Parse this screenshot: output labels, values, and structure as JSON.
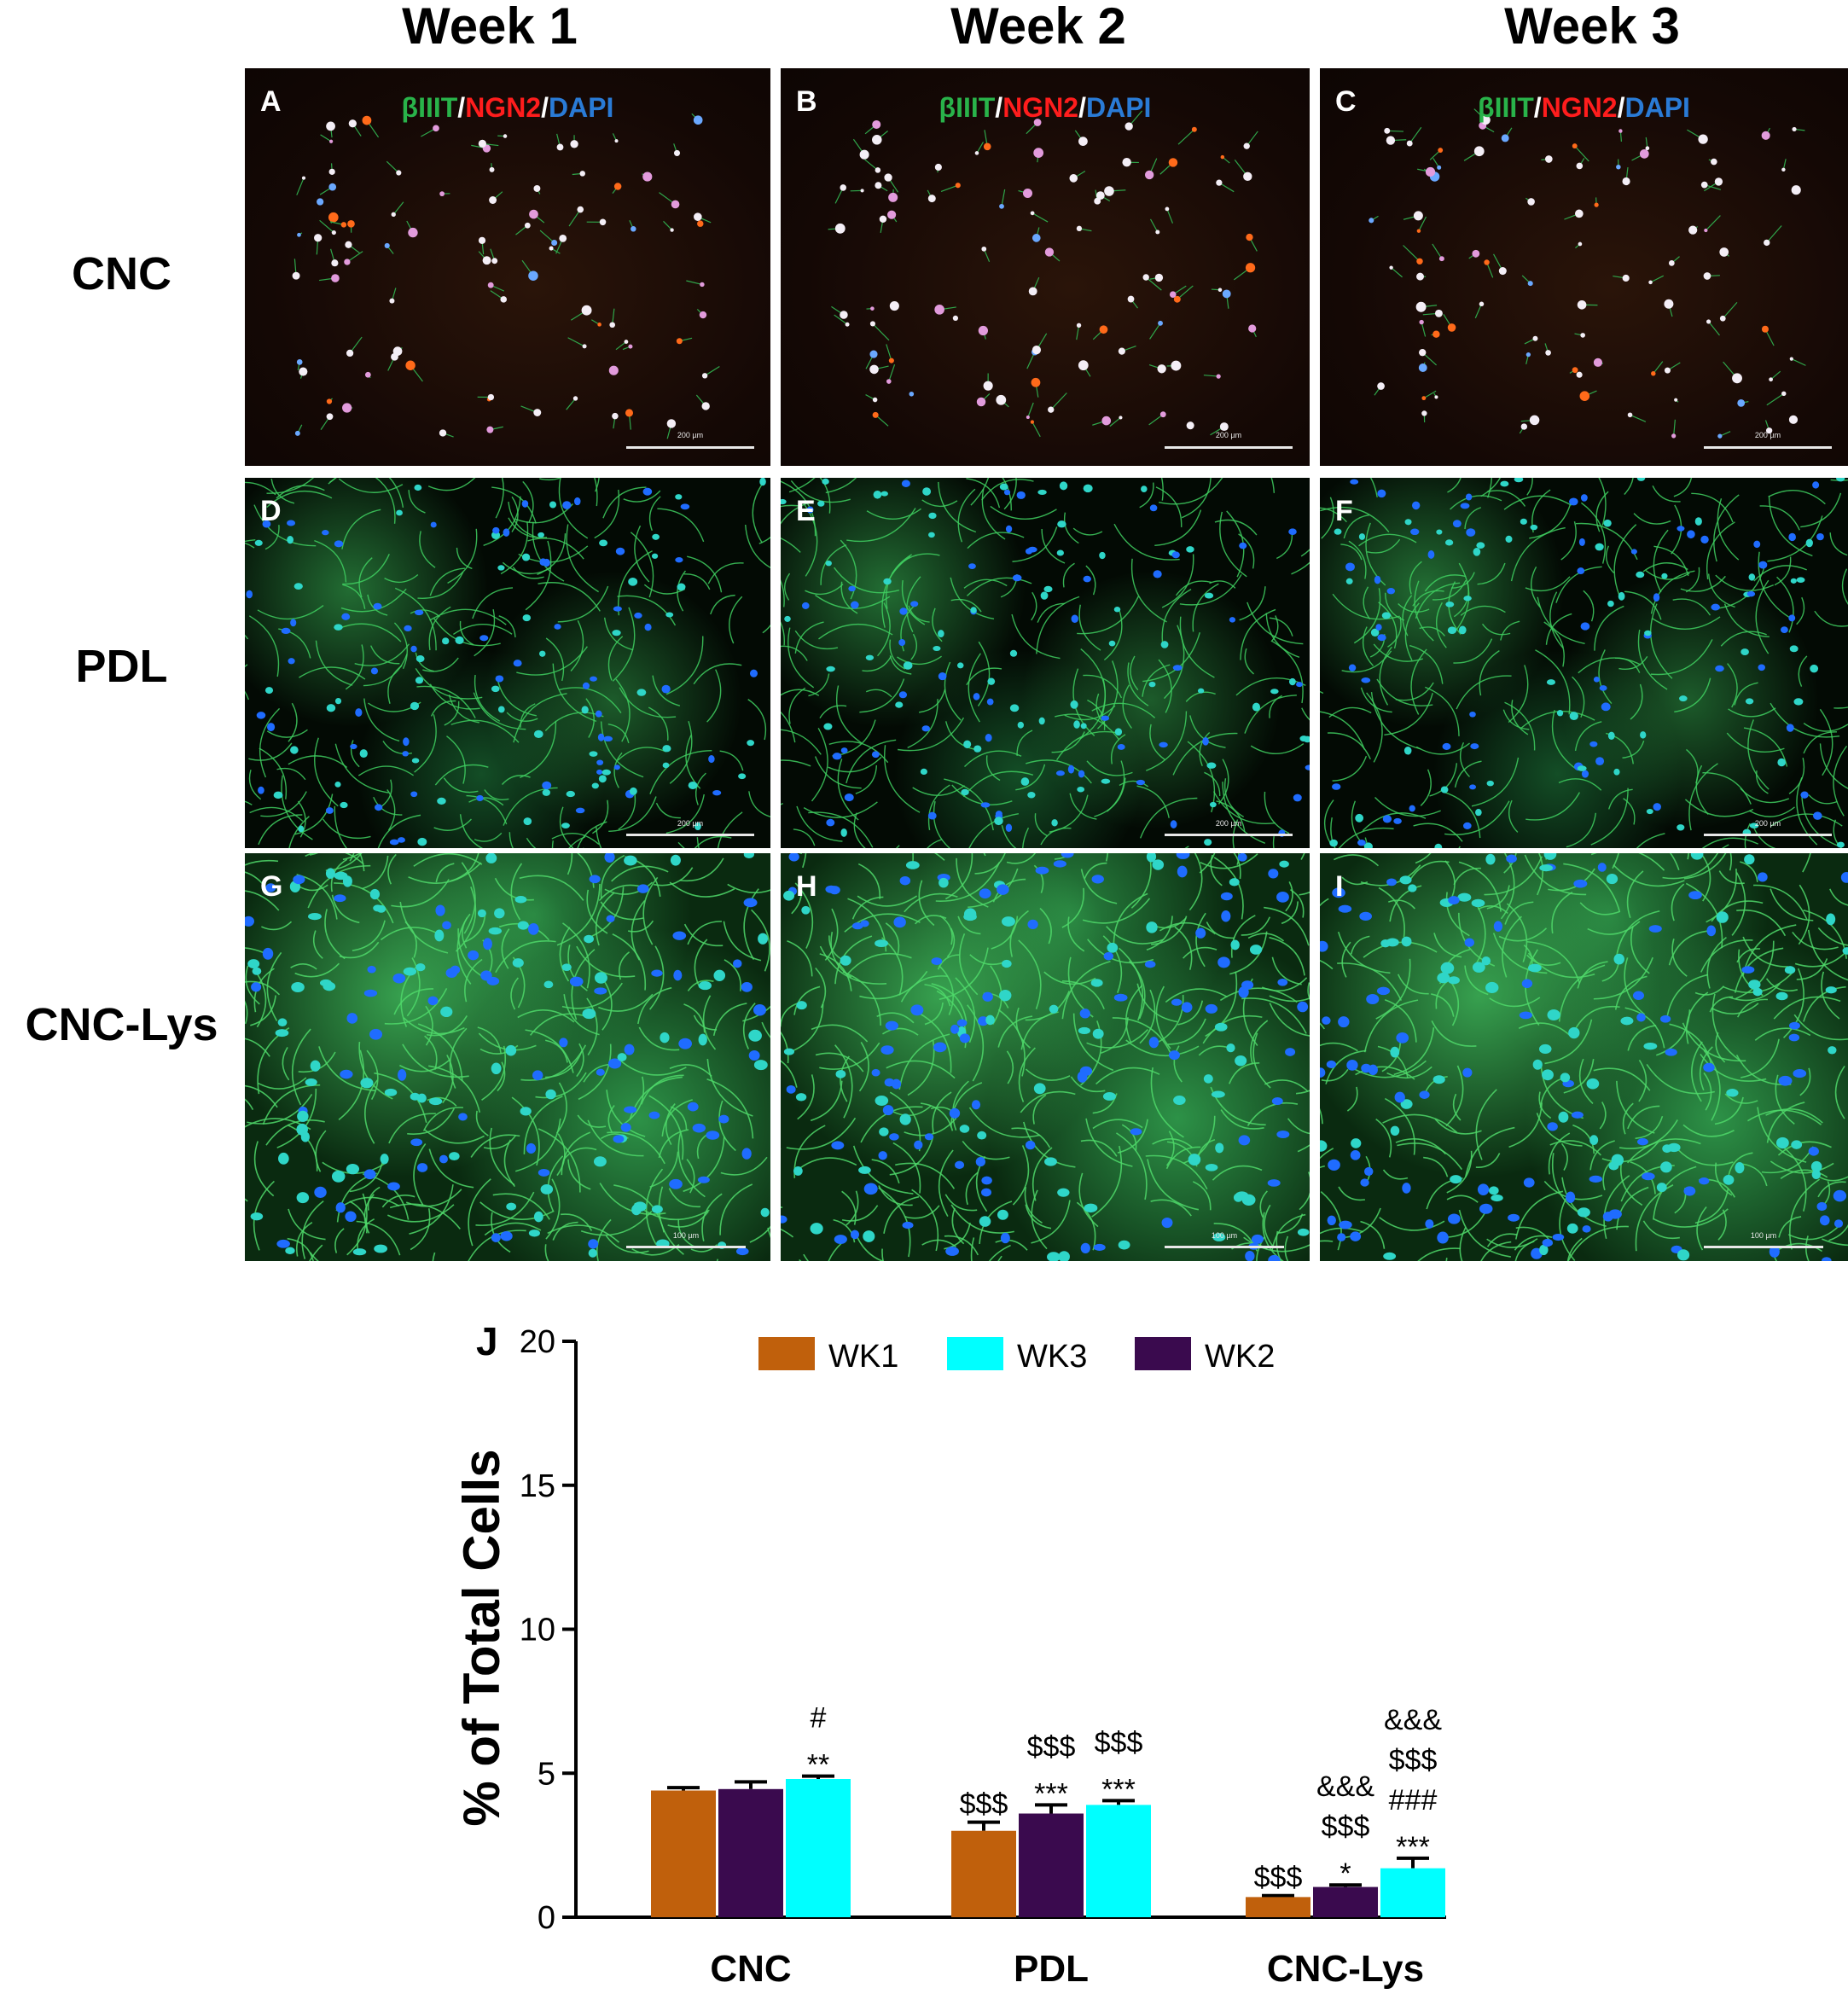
{
  "columns": [
    "Week 1",
    "Week 2",
    "Week 3"
  ],
  "rows": [
    "CNC",
    "PDL",
    "CNC-Lys"
  ],
  "panel_letters": [
    "A",
    "B",
    "C",
    "D",
    "E",
    "F",
    "G",
    "H",
    "I"
  ],
  "stain_label": {
    "marker1": "βIIIT",
    "sep1": "/",
    "marker2": "NGN2",
    "sep2": "/",
    "marker3": "DAPI"
  },
  "scale_labels": {
    "cnc": "200 µm",
    "pdl": "200 µm",
    "lys": "100 µm"
  },
  "colors": {
    "wk1": "#c0600c",
    "wk2": "#3a0a4e",
    "wk3": "#00ffff",
    "marker_green": "#29b34a",
    "marker_red": "#ff1d1d",
    "marker_blue": "#2a7bd6"
  },
  "chart_data": {
    "type": "bar",
    "panel_label": "J",
    "ylabel": "% of Total Cells",
    "ylim": [
      0,
      20
    ],
    "yticks": [
      "0",
      "5",
      "10",
      "15",
      "20"
    ],
    "categories": [
      "CNC",
      "PDL",
      "CNC-Lys"
    ],
    "legend": {
      "placement": "top",
      "entries": [
        {
          "name": "WK1",
          "color_key": "wk1"
        },
        {
          "name": "WK3",
          "color_key": "wk3"
        },
        {
          "name": "WK2",
          "color_key": "wk2"
        }
      ]
    },
    "series": [
      {
        "name": "WK1",
        "color_key": "wk1",
        "values": [
          4.4,
          3.0,
          0.7
        ],
        "errors": [
          0.1,
          0.3,
          0.05
        ]
      },
      {
        "name": "WK2",
        "color_key": "wk2",
        "values": [
          4.45,
          3.6,
          1.05
        ],
        "errors": [
          0.25,
          0.3,
          0.07
        ]
      },
      {
        "name": "WK3",
        "color_key": "wk3",
        "values": [
          4.8,
          3.9,
          1.7
        ],
        "errors": [
          0.1,
          0.15,
          0.35
        ]
      }
    ],
    "annotations": [
      [
        [],
        [],
        [
          "#",
          "**"
        ]
      ],
      [
        [
          "$$$"
        ],
        [
          "$$$",
          "***"
        ],
        [
          "$$$",
          "***"
        ]
      ],
      [
        [
          "$$$"
        ],
        [
          "&&&",
          "$$$",
          "*"
        ],
        [
          "&&&",
          "$$$",
          "###",
          "***"
        ]
      ]
    ]
  }
}
